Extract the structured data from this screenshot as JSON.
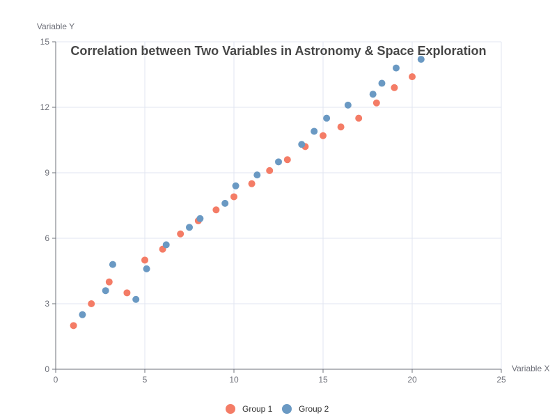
{
  "chart_data": {
    "type": "scatter",
    "title": "Correlation between Two Variables in Astronomy & Space Exploration",
    "xlabel": "Variable X",
    "ylabel": "Variable Y",
    "xlim": [
      0,
      25
    ],
    "ylim": [
      0,
      15
    ],
    "xticks": [
      0,
      5,
      10,
      15,
      20,
      25
    ],
    "yticks": [
      0,
      3,
      6,
      9,
      12,
      15
    ],
    "grid": true,
    "legend_position": "bottom-center",
    "series": [
      {
        "name": "Group 1",
        "color": "#f47c66",
        "points": [
          [
            1,
            2
          ],
          [
            2,
            3
          ],
          [
            3,
            4
          ],
          [
            4,
            3.5
          ],
          [
            5,
            5
          ],
          [
            6,
            5.5
          ],
          [
            7,
            6.2
          ],
          [
            8,
            6.8
          ],
          [
            9,
            7.3
          ],
          [
            10,
            7.9
          ],
          [
            11,
            8.5
          ],
          [
            12,
            9.1
          ],
          [
            13,
            9.6
          ],
          [
            14,
            10.2
          ],
          [
            15,
            10.7
          ],
          [
            16,
            11.1
          ],
          [
            17,
            11.5
          ],
          [
            18,
            12.2
          ],
          [
            19,
            12.9
          ],
          [
            20,
            13.4
          ]
        ]
      },
      {
        "name": "Group 2",
        "color": "#6a99c3",
        "points": [
          [
            1.5,
            2.5
          ],
          [
            2.8,
            3.6
          ],
          [
            3.2,
            4.8
          ],
          [
            4.5,
            3.2
          ],
          [
            5.1,
            4.6
          ],
          [
            6.2,
            5.7
          ],
          [
            7.5,
            6.5
          ],
          [
            8.1,
            6.9
          ],
          [
            9.5,
            7.6
          ],
          [
            10.1,
            8.4
          ],
          [
            11.3,
            8.9
          ],
          [
            12.5,
            9.5
          ],
          [
            13.8,
            10.3
          ],
          [
            14.5,
            10.9
          ],
          [
            15.2,
            11.5
          ],
          [
            16.4,
            12.1
          ],
          [
            17.8,
            12.6
          ],
          [
            18.3,
            13.1
          ],
          [
            19.1,
            13.8
          ],
          [
            20.5,
            14.2
          ]
        ]
      }
    ]
  }
}
